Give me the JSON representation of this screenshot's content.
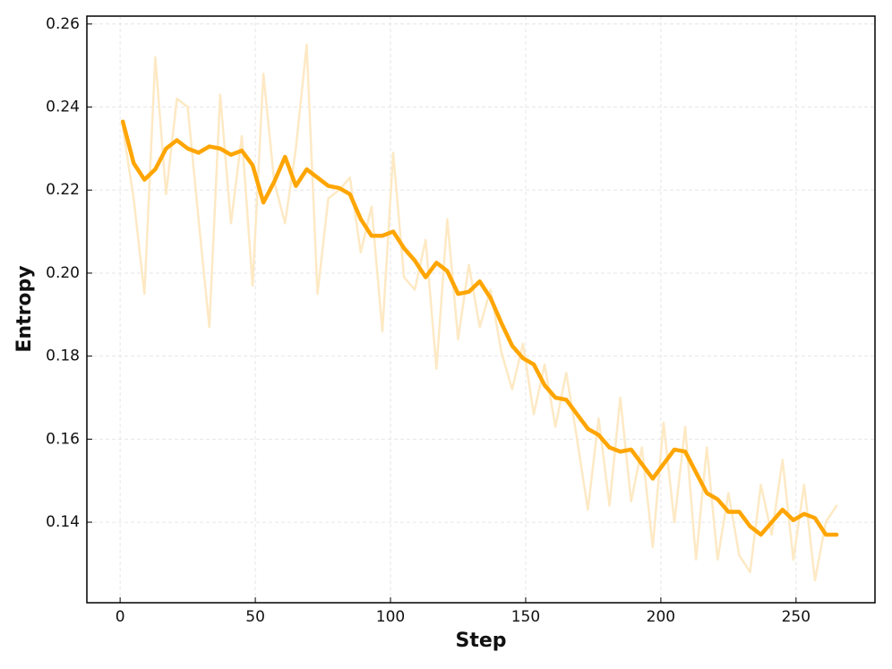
{
  "chart_data": {
    "type": "line",
    "x_label": "Step",
    "y_label": "Entropy",
    "x": [
      1,
      5,
      9,
      13,
      17,
      21,
      25,
      29,
      33,
      37,
      41,
      45,
      49,
      53,
      57,
      61,
      65,
      69,
      73,
      77,
      81,
      85,
      89,
      93,
      97,
      101,
      105,
      109,
      113,
      117,
      121,
      125,
      129,
      133,
      137,
      141,
      145,
      149,
      153,
      157,
      161,
      165,
      169,
      173,
      177,
      181,
      185,
      189,
      193,
      197,
      201,
      205,
      209,
      213,
      217,
      221,
      225,
      229,
      233,
      237,
      241,
      245,
      249,
      253,
      257,
      261,
      265
    ],
    "series": [
      {
        "color": "#fde9c4",
        "width": 2.5,
        "values": [
          0.235,
          0.218,
          0.195,
          0.252,
          0.219,
          0.242,
          0.24,
          0.213,
          0.187,
          0.243,
          0.212,
          0.233,
          0.197,
          0.248,
          0.222,
          0.212,
          0.23,
          0.255,
          0.195,
          0.218,
          0.22,
          0.223,
          0.205,
          0.216,
          0.186,
          0.229,
          0.199,
          0.196,
          0.208,
          0.177,
          0.213,
          0.184,
          0.202,
          0.187,
          0.196,
          0.181,
          0.172,
          0.183,
          0.166,
          0.178,
          0.163,
          0.176,
          0.16,
          0.143,
          0.165,
          0.144,
          0.17,
          0.145,
          0.158,
          0.134,
          0.164,
          0.14,
          0.163,
          0.131,
          0.158,
          0.131,
          0.147,
          0.132,
          0.128,
          0.149,
          0.137,
          0.155,
          0.131,
          0.149,
          0.126,
          0.14,
          0.144
        ]
      },
      {
        "color": "#ffa500",
        "width": 4.5,
        "values": [
          0.2365,
          0.2265,
          0.2225,
          0.225,
          0.23,
          0.232,
          0.23,
          0.229,
          0.2305,
          0.23,
          0.2285,
          0.2295,
          0.226,
          0.217,
          0.222,
          0.228,
          0.221,
          0.225,
          0.223,
          0.221,
          0.2205,
          0.219,
          0.213,
          0.209,
          0.209,
          0.21,
          0.206,
          0.203,
          0.199,
          0.2025,
          0.2005,
          0.195,
          0.1955,
          0.198,
          0.194,
          0.188,
          0.1825,
          0.1795,
          0.178,
          0.173,
          0.17,
          0.1695,
          0.166,
          0.1625,
          0.161,
          0.158,
          0.157,
          0.1575,
          0.154,
          0.1505,
          0.154,
          0.1575,
          0.157,
          0.152,
          0.147,
          0.1455,
          0.1425,
          0.1425,
          0.139,
          0.137,
          0.14,
          0.143,
          0.1405,
          0.142,
          0.141,
          0.137,
          0.137
        ]
      }
    ],
    "xlim": [
      -12.3,
      279.2
    ],
    "xticks": [
      0,
      50,
      100,
      150,
      200,
      250
    ],
    "ylim": [
      0.1206,
      0.2619
    ],
    "yticks": [
      0.14,
      0.16,
      0.18,
      {
        "value": 0.2,
        "label": "0.20"
      },
      0.22,
      0.24,
      0.26
    ],
    "grid": true
  }
}
